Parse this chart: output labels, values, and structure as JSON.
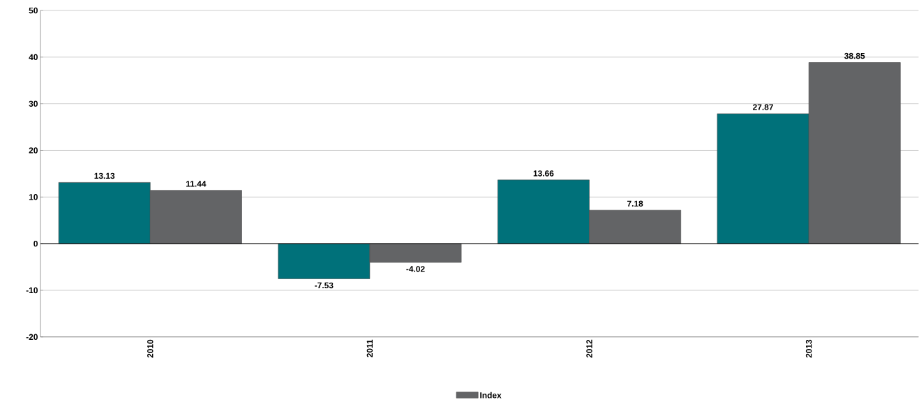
{
  "chart_data": {
    "type": "bar",
    "categories": [
      "2010",
      "2011",
      "2012",
      "2013"
    ],
    "series": [
      {
        "color": "#00717a",
        "values": [
          13.13,
          -7.53,
          13.66,
          27.87
        ]
      },
      {
        "name": "Index",
        "color": "#636466",
        "values": [
          11.44,
          -4.02,
          7.18,
          38.85
        ]
      }
    ],
    "ylim": [
      -20,
      50
    ],
    "yticks": [
      -20,
      -10,
      0,
      10,
      20,
      30,
      40,
      50
    ],
    "grid": "y",
    "legend": "bottom",
    "data_labels": true
  }
}
